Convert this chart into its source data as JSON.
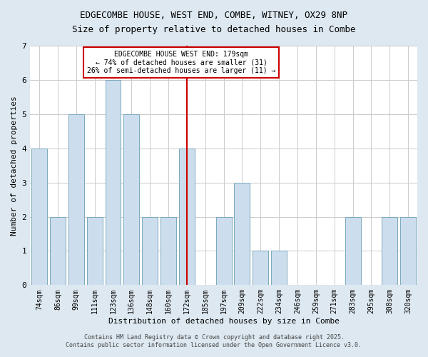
{
  "title_line1": "EDGECOMBE HOUSE, WEST END, COMBE, WITNEY, OX29 8NP",
  "title_line2": "Size of property relative to detached houses in Combe",
  "xlabel": "Distribution of detached houses by size in Combe",
  "ylabel": "Number of detached properties",
  "categories": [
    "74sqm",
    "86sqm",
    "99sqm",
    "111sqm",
    "123sqm",
    "136sqm",
    "148sqm",
    "160sqm",
    "172sqm",
    "185sqm",
    "197sqm",
    "209sqm",
    "222sqm",
    "234sqm",
    "246sqm",
    "259sqm",
    "271sqm",
    "283sqm",
    "295sqm",
    "308sqm",
    "320sqm"
  ],
  "values": [
    4,
    2,
    5,
    2,
    6,
    5,
    2,
    2,
    4,
    0,
    2,
    3,
    1,
    1,
    0,
    0,
    0,
    2,
    0,
    2,
    2
  ],
  "bar_color": "#ccdded",
  "bar_edge_color": "#7aaabb",
  "highlight_index": 8,
  "highlight_line_color": "#cc0000",
  "annotation_text": "EDGECOMBE HOUSE WEST END: 179sqm\n← 74% of detached houses are smaller (31)\n26% of semi-detached houses are larger (11) →",
  "annotation_box_color": "#ffffff",
  "annotation_border_color": "#cc0000",
  "ylim": [
    0,
    7
  ],
  "yticks": [
    0,
    1,
    2,
    3,
    4,
    5,
    6,
    7
  ],
  "footer_line1": "Contains HM Land Registry data © Crown copyright and database right 2025.",
  "footer_line2": "Contains public sector information licensed under the Open Government Licence v3.0.",
  "bg_color": "#dde8f0",
  "plot_bg_color": "#ffffff",
  "grid_color": "#cccccc",
  "title_fontsize": 9,
  "axis_label_fontsize": 8,
  "tick_fontsize": 7,
  "footer_fontsize": 6
}
